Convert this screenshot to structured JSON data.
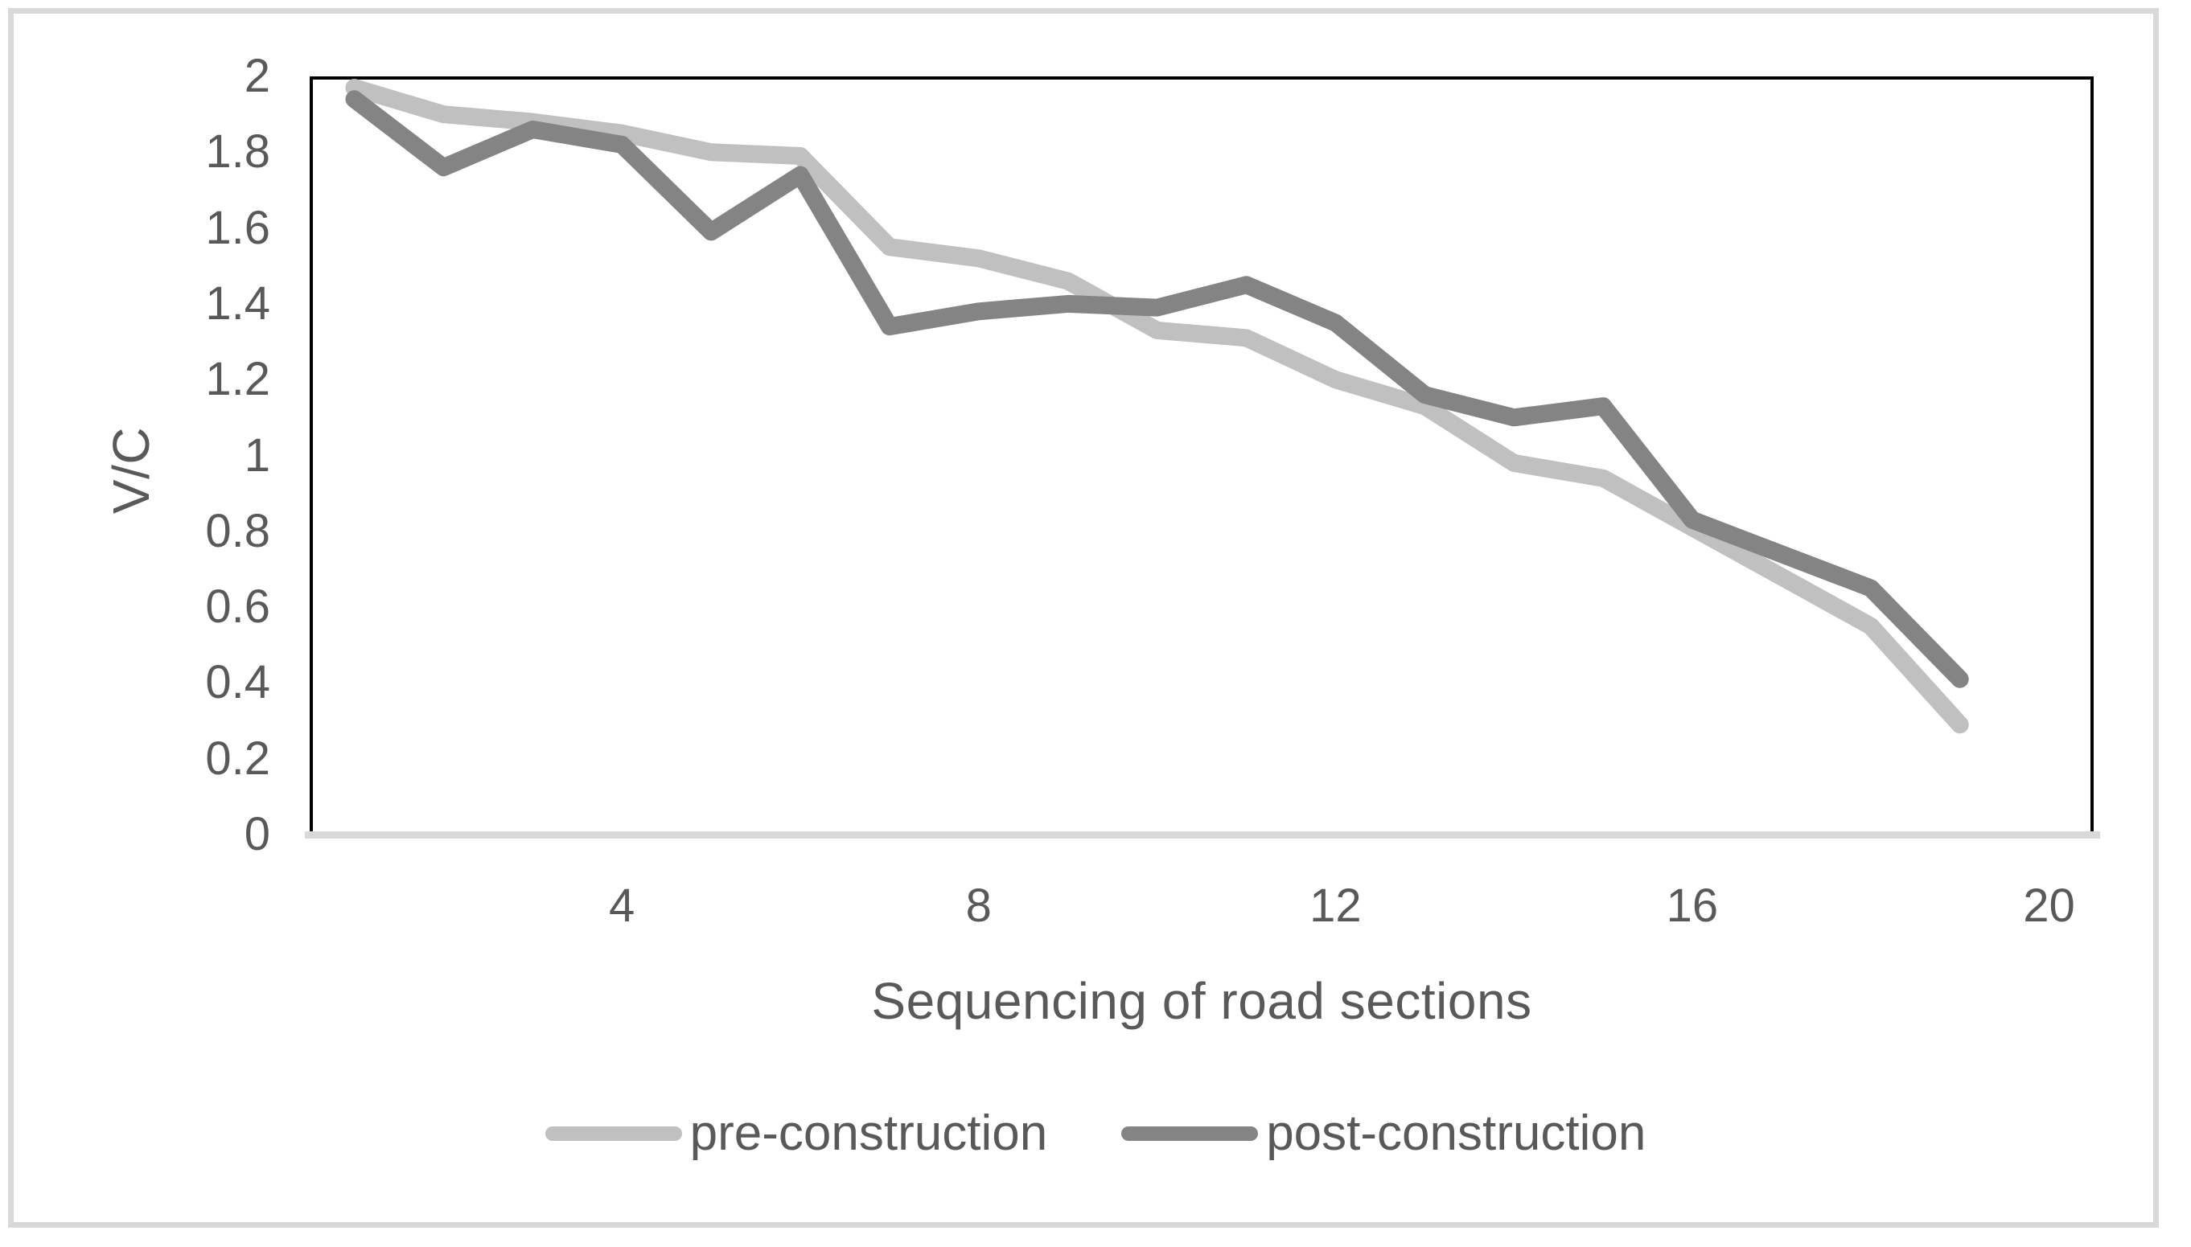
{
  "figure": {
    "background_color": "#ffffff",
    "outer_border_color": "#d9d9d9",
    "plot_border_color": "#000000",
    "baseline_color": "#d9d9d9",
    "text_color": "#595959"
  },
  "chart_data": {
    "type": "line",
    "title": "",
    "xlabel": "Sequencing of road sections",
    "ylabel": "V/C",
    "xlim": [
      0,
      20
    ],
    "ylim": [
      0,
      2
    ],
    "grid": false,
    "legend_position": "bottom",
    "x": [
      1,
      2,
      3,
      4,
      5,
      6,
      7,
      8,
      9,
      10,
      11,
      12,
      13,
      14,
      15,
      16,
      17,
      18,
      19
    ],
    "x_ticks": [
      {
        "label": "4",
        "value": 4
      },
      {
        "label": "8",
        "value": 8
      },
      {
        "label": "12",
        "value": 12
      },
      {
        "label": "16",
        "value": 16
      },
      {
        "label": "20",
        "value": 20
      }
    ],
    "y_ticks": [
      {
        "label": "2",
        "value": 2.0
      },
      {
        "label": "1.8",
        "value": 1.8
      },
      {
        "label": "1.6",
        "value": 1.6
      },
      {
        "label": "1.4",
        "value": 1.4
      },
      {
        "label": "1.2",
        "value": 1.2
      },
      {
        "label": "1",
        "value": 1.0
      },
      {
        "label": "0.8",
        "value": 0.8
      },
      {
        "label": "0.6",
        "value": 0.6
      },
      {
        "label": "0.4",
        "value": 0.4
      },
      {
        "label": "0.2",
        "value": 0.2
      },
      {
        "label": "0",
        "value": 0.0
      }
    ],
    "series": [
      {
        "name": "pre-construction",
        "color": "#c0c0c0",
        "values": [
          1.97,
          1.9,
          1.88,
          1.85,
          1.8,
          1.79,
          1.55,
          1.52,
          1.46,
          1.33,
          1.31,
          1.2,
          1.13,
          0.98,
          0.94,
          0.81,
          0.68,
          0.55,
          0.29
        ]
      },
      {
        "name": "post-construction",
        "color": "#848484",
        "values": [
          1.94,
          1.76,
          1.86,
          1.82,
          1.59,
          1.74,
          1.34,
          1.38,
          1.4,
          1.39,
          1.45,
          1.35,
          1.16,
          1.1,
          1.13,
          0.83,
          0.74,
          0.65,
          0.41
        ]
      }
    ]
  }
}
